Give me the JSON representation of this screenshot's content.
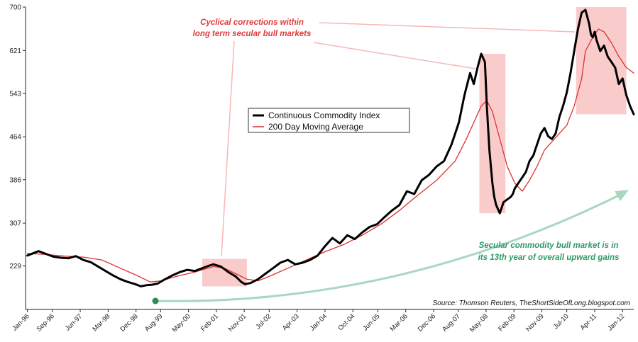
{
  "chart_data": {
    "type": "line",
    "title": "",
    "xlabel": "",
    "ylabel": "",
    "ylim": [
      150,
      700
    ],
    "y_ticks": [
      229,
      307,
      386,
      464,
      543,
      621,
      700
    ],
    "x_ticks": [
      "Jan-96",
      "Sep-96",
      "Jun-97",
      "Mar-98",
      "Dec-98",
      "Aug-99",
      "May-00",
      "Feb-01",
      "Nov-01",
      "Jul-02",
      "Apr-03",
      "Jan-04",
      "Oct-04",
      "Jun-05",
      "Mar-06",
      "Dec-06",
      "Aug-07",
      "May-08",
      "Feb-09",
      "Nov-09",
      "Jul-10",
      "Apr-11",
      "Jan-12"
    ],
    "x_tick_years": [
      1996.0,
      1996.67,
      1997.42,
      1998.17,
      1998.92,
      1999.58,
      2000.33,
      2001.08,
      2001.83,
      2002.5,
      2003.25,
      2004.0,
      2004.75,
      2005.42,
      2006.17,
      2006.92,
      2007.58,
      2008.33,
      2009.08,
      2009.83,
      2010.5,
      2011.25,
      2012.0
    ],
    "x_range_years": [
      1995.95,
      2012.3
    ],
    "series": [
      {
        "name": "Continuous Commodity Index",
        "color": "#000000",
        "x": [
          1996.0,
          1996.15,
          1996.3,
          1996.5,
          1996.7,
          1996.9,
          1997.1,
          1997.3,
          1997.5,
          1997.7,
          1997.9,
          1998.1,
          1998.3,
          1998.5,
          1998.7,
          1998.9,
          1999.05,
          1999.2,
          1999.35,
          1999.5,
          1999.7,
          1999.9,
          2000.1,
          2000.3,
          2000.5,
          2000.7,
          2000.9,
          2001.0,
          2001.2,
          2001.4,
          2001.6,
          2001.75,
          2001.85,
          2002.0,
          2002.2,
          2002.4,
          2002.6,
          2002.8,
          2003.0,
          2003.2,
          2003.4,
          2003.6,
          2003.8,
          2004.0,
          2004.2,
          2004.4,
          2004.6,
          2004.8,
          2005.0,
          2005.2,
          2005.4,
          2005.6,
          2005.8,
          2006.0,
          2006.2,
          2006.4,
          2006.6,
          2006.8,
          2007.0,
          2007.2,
          2007.4,
          2007.6,
          2007.75,
          2007.9,
          2008.0,
          2008.1,
          2008.2,
          2008.3,
          2008.35,
          2008.42,
          2008.5,
          2008.55,
          2008.6,
          2008.7,
          2008.8,
          2008.9,
          2009.0,
          2009.05,
          2009.1,
          2009.2,
          2009.3,
          2009.4,
          2009.5,
          2009.6,
          2009.7,
          2009.8,
          2009.9,
          2010.0,
          2010.1,
          2010.2,
          2010.3,
          2010.4,
          2010.5,
          2010.6,
          2010.7,
          2010.8,
          2010.9,
          2011.0,
          2011.1,
          2011.15,
          2011.2,
          2011.25,
          2011.3,
          2011.4,
          2011.5,
          2011.6,
          2011.7,
          2011.8,
          2011.9,
          2012.0,
          2012.1,
          2012.2,
          2012.3
        ],
        "y": [
          248,
          252,
          256,
          251,
          246,
          244,
          243,
          247,
          240,
          236,
          228,
          220,
          212,
          205,
          200,
          196,
          192,
          194,
          195,
          197,
          205,
          212,
          218,
          222,
          220,
          225,
          230,
          232,
          228,
          218,
          210,
          200,
          196,
          198,
          205,
          215,
          225,
          235,
          240,
          232,
          235,
          240,
          248,
          265,
          280,
          270,
          285,
          278,
          290,
          300,
          305,
          318,
          330,
          340,
          365,
          360,
          385,
          395,
          410,
          420,
          450,
          490,
          540,
          580,
          560,
          590,
          615,
          600,
          520,
          440,
          380,
          355,
          340,
          325,
          345,
          350,
          355,
          360,
          370,
          380,
          390,
          400,
          420,
          430,
          450,
          470,
          480,
          465,
          460,
          470,
          500,
          520,
          545,
          580,
          620,
          660,
          690,
          695,
          670,
          650,
          645,
          655,
          640,
          620,
          630,
          610,
          600,
          590,
          560,
          570,
          540,
          520,
          505
        ],
        "stroke_width": 3
      },
      {
        "name": "200 Day Moving Average",
        "color": "#e03030",
        "x": [
          1996.0,
          1996.5,
          1997.0,
          1997.5,
          1998.0,
          1998.5,
          1999.0,
          1999.3,
          1999.6,
          2000.0,
          2000.5,
          2001.0,
          2001.3,
          2001.6,
          2001.9,
          2002.2,
          2002.5,
          2003.0,
          2003.5,
          2004.0,
          2004.5,
          2005.0,
          2005.5,
          2006.0,
          2006.5,
          2007.0,
          2007.5,
          2007.8,
          2008.0,
          2008.2,
          2008.35,
          2008.5,
          2008.7,
          2008.9,
          2009.1,
          2009.3,
          2009.5,
          2009.7,
          2009.9,
          2010.1,
          2010.3,
          2010.5,
          2010.7,
          2010.9,
          2011.0,
          2011.2,
          2011.35,
          2011.5,
          2011.7,
          2011.9,
          2012.1,
          2012.3
        ],
        "y": [
          252,
          250,
          247,
          245,
          240,
          225,
          210,
          200,
          202,
          210,
          218,
          228,
          225,
          215,
          205,
          202,
          210,
          225,
          240,
          255,
          268,
          285,
          305,
          330,
          358,
          385,
          420,
          460,
          490,
          520,
          530,
          510,
          460,
          410,
          380,
          365,
          385,
          410,
          440,
          455,
          470,
          485,
          520,
          570,
          620,
          645,
          660,
          655,
          635,
          610,
          590,
          580
        ],
        "stroke_width": 1.3
      }
    ],
    "legend": {
      "position": "center",
      "entries": [
        "Continuous Commodity Index",
        "200 Day Moving Average"
      ]
    }
  },
  "annotations": {
    "cyclical_line1": "Cyclical corrections within",
    "cyclical_line2": "long term secular bull markets",
    "secular_line1": "Secular commodity bull market is in",
    "secular_line2": "its 13th year of overall upward gains",
    "source": "Source: Thomson Reuters, TheShortSideOfLong.blogspot.com"
  },
  "correction_boxes": [
    {
      "x_start": 2000.7,
      "x_end": 2001.9,
      "y_low": 192,
      "y_high": 242
    },
    {
      "x_start": 2008.15,
      "x_end": 2008.85,
      "y_low": 325,
      "y_high": 615
    },
    {
      "x_start": 2010.75,
      "x_end": 2012.1,
      "y_low": 505,
      "y_high": 700
    }
  ],
  "colors": {
    "axis": "#222222",
    "correction_fill": "#f7a8a8",
    "annotation_red": "#e23a3a",
    "annotation_green": "#2e9a68",
    "arrow_green": "#a8d8c0",
    "start_marker": "#2e8b57"
  }
}
